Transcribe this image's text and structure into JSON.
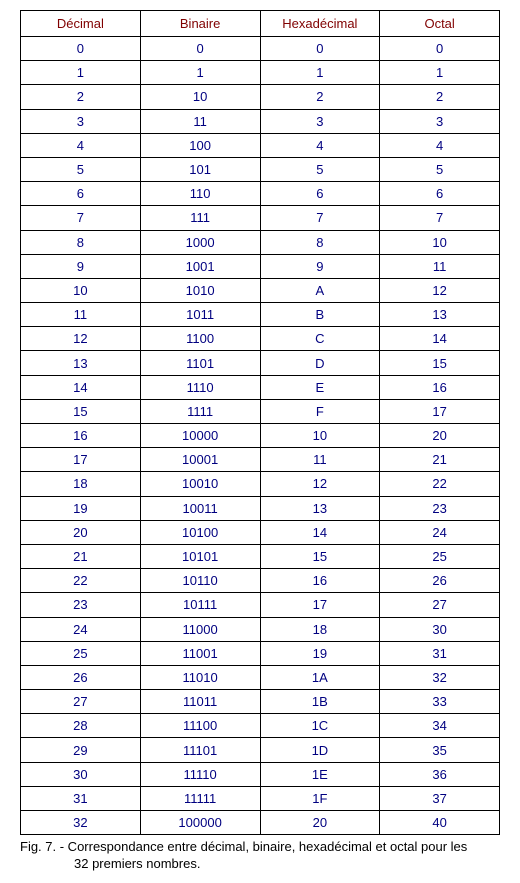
{
  "table": {
    "columns": [
      "Décimal",
      "Binaire",
      "Hexadécimal",
      "Octal"
    ],
    "rows": [
      [
        "0",
        "0",
        "0",
        "0"
      ],
      [
        "1",
        "1",
        "1",
        "1"
      ],
      [
        "2",
        "10",
        "2",
        "2"
      ],
      [
        "3",
        "11",
        "3",
        "3"
      ],
      [
        "4",
        "100",
        "4",
        "4"
      ],
      [
        "5",
        "101",
        "5",
        "5"
      ],
      [
        "6",
        "110",
        "6",
        "6"
      ],
      [
        "7",
        "111",
        "7",
        "7"
      ],
      [
        "8",
        "1000",
        "8",
        "10"
      ],
      [
        "9",
        "1001",
        "9",
        "11"
      ],
      [
        "10",
        "1010",
        "A",
        "12"
      ],
      [
        "11",
        "1011",
        "B",
        "13"
      ],
      [
        "12",
        "1100",
        "C",
        "14"
      ],
      [
        "13",
        "1101",
        "D",
        "15"
      ],
      [
        "14",
        "1110",
        "E",
        "16"
      ],
      [
        "15",
        "1111",
        "F",
        "17"
      ],
      [
        "16",
        "10000",
        "10",
        "20"
      ],
      [
        "17",
        "10001",
        "11",
        "21"
      ],
      [
        "18",
        "10010",
        "12",
        "22"
      ],
      [
        "19",
        "10011",
        "13",
        "23"
      ],
      [
        "20",
        "10100",
        "14",
        "24"
      ],
      [
        "21",
        "10101",
        "15",
        "25"
      ],
      [
        "22",
        "10110",
        "16",
        "26"
      ],
      [
        "23",
        "10111",
        "17",
        "27"
      ],
      [
        "24",
        "11000",
        "18",
        "30"
      ],
      [
        "25",
        "11001",
        "19",
        "31"
      ],
      [
        "26",
        "11010",
        "1A",
        "32"
      ],
      [
        "27",
        "11011",
        "1B",
        "33"
      ],
      [
        "28",
        "11100",
        "1C",
        "34"
      ],
      [
        "29",
        "11101",
        "1D",
        "35"
      ],
      [
        "30",
        "11110",
        "1E",
        "36"
      ],
      [
        "31",
        "11111",
        "1F",
        "37"
      ],
      [
        "32",
        "100000",
        "20",
        "40"
      ]
    ],
    "header_color": "#800000",
    "cell_color": "#000080",
    "border_color": "#000000",
    "background_color": "#ffffff",
    "font_family": "Arial",
    "header_fontsize": 13,
    "cell_fontsize": 13,
    "column_align": "center",
    "column_widths_pct": [
      25,
      25,
      25,
      25
    ]
  },
  "caption": {
    "line1": "Fig. 7. - Correspondance entre décimal, binaire, hexadécimal et octal pour les",
    "line2": "32 premiers nombres.",
    "color": "#000000",
    "fontsize": 13
  }
}
